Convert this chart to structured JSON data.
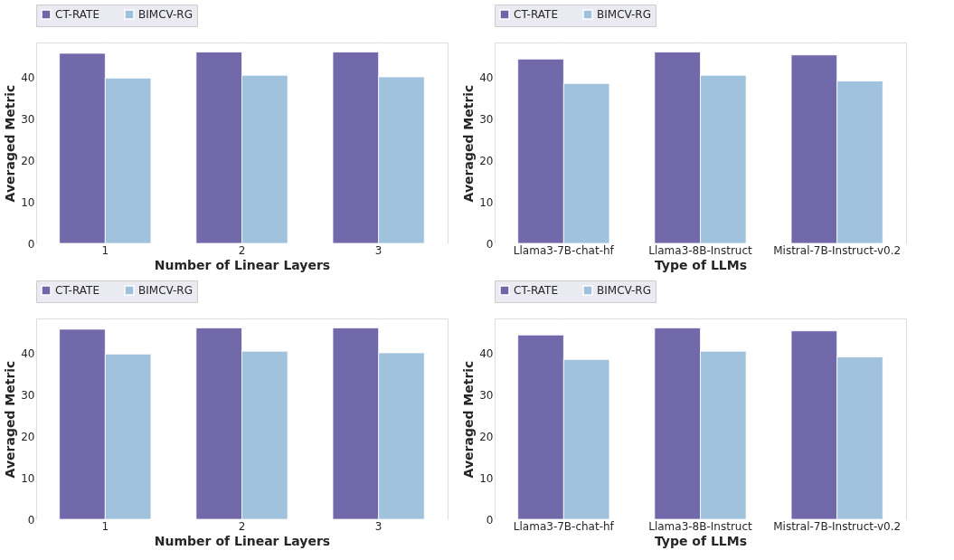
{
  "chart_data": [
    {
      "type": "bar",
      "xlabel": "Number of Linear Layers",
      "ylabel": "Averaged Metric",
      "categories": [
        "1",
        "2",
        "3"
      ],
      "ylim": [
        0,
        48.5
      ],
      "yticks": [
        0,
        10,
        20,
        30,
        40
      ],
      "grid": true,
      "legend": "top",
      "series": [
        {
          "name": "CT-RATE",
          "color": "#6a61a6",
          "values": [
            45.9,
            46.2,
            46.2
          ]
        },
        {
          "name": "BIMCV-RG",
          "color": "#9dbfdc",
          "values": [
            39.9,
            40.6,
            40.2
          ]
        }
      ]
    },
    {
      "type": "bar",
      "xlabel": "Type of LLMs",
      "ylabel": "Averaged Metric",
      "categories": [
        "Llama3-7B-chat-hf",
        "Llama3-8B-Instruct",
        "Mistral-7B-Instruct-v0.2"
      ],
      "ylim": [
        0,
        48.5
      ],
      "yticks": [
        0,
        10,
        20,
        30,
        40
      ],
      "grid": true,
      "legend": "top",
      "series": [
        {
          "name": "CT-RATE",
          "color": "#6a61a6",
          "values": [
            44.5,
            46.2,
            45.5
          ]
        },
        {
          "name": "BIMCV-RG",
          "color": "#9dbfdc",
          "values": [
            38.6,
            40.6,
            39.2
          ]
        }
      ]
    },
    {
      "type": "bar",
      "xlabel": "Number of Linear Layers",
      "ylabel": "Averaged Metric",
      "categories": [
        "1",
        "2",
        "3"
      ],
      "ylim": [
        0,
        48.5
      ],
      "yticks": [
        0,
        10,
        20,
        30,
        40
      ],
      "grid": true,
      "legend": "top",
      "series": [
        {
          "name": "CT-RATE",
          "color": "#6a61a6",
          "values": [
            45.9,
            46.2,
            46.2
          ]
        },
        {
          "name": "BIMCV-RG",
          "color": "#9dbfdc",
          "values": [
            39.9,
            40.6,
            40.2
          ]
        }
      ]
    },
    {
      "type": "bar",
      "xlabel": "Type of LLMs",
      "ylabel": "Averaged Metric",
      "categories": [
        "Llama3-7B-chat-hf",
        "Llama3-8B-Instruct",
        "Mistral-7B-Instruct-v0.2"
      ],
      "ylim": [
        0,
        48.5
      ],
      "yticks": [
        0,
        10,
        20,
        30,
        40
      ],
      "grid": true,
      "legend": "top",
      "series": [
        {
          "name": "CT-RATE",
          "color": "#6a61a6",
          "values": [
            44.5,
            46.2,
            45.5
          ]
        },
        {
          "name": "BIMCV-RG",
          "color": "#9dbfdc",
          "values": [
            38.6,
            40.6,
            39.2
          ]
        }
      ]
    }
  ]
}
